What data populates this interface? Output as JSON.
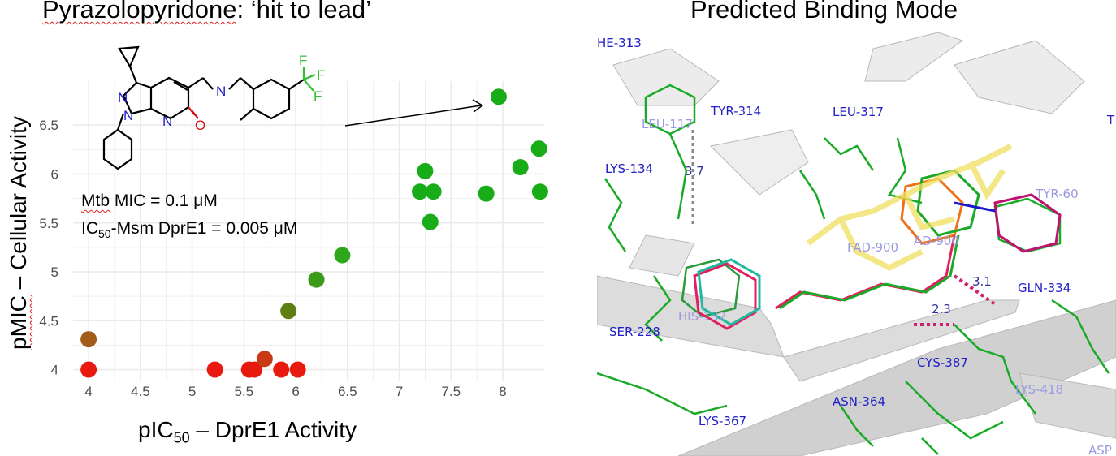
{
  "panels": {
    "left_title_part1": "Pyrazolopyridone",
    "left_title_part2": ": ‘hit to lead’",
    "right_title": "Predicted Binding Mode"
  },
  "notes": {
    "line1_a": "Mtb",
    "line1_b": " MIC = 0.1 μM",
    "line2_a": "IC",
    "line2_sub": "50",
    "line2_b": "-Msm DprE1 = 0.005 μM"
  },
  "axes": {
    "x_title_a": "pIC",
    "x_title_sub": "50",
    "x_title_b": " – DprE1 Activity",
    "y_title_a": "pMIC",
    "y_title_b": " – Cellular Activity"
  },
  "chart_data": {
    "type": "scatter",
    "title": "Pyrazolopyridone: ‘hit to lead’",
    "xlabel": "pIC50 – DprE1 Activity",
    "ylabel": "pMIC – Cellular Activity",
    "xlim": [
      3.85,
      8.4
    ],
    "ylim": [
      3.88,
      6.95
    ],
    "xticks": [
      "4",
      "4.5",
      "5",
      "5.5",
      "6",
      "6.5",
      "7",
      "7.5",
      "8"
    ],
    "xtick_values": [
      4,
      4.5,
      5,
      5.5,
      6,
      6.5,
      7,
      7.5,
      8
    ],
    "yticks": [
      "4",
      "4.5",
      "5",
      "5.5",
      "6",
      "6.5"
    ],
    "ytick_values": [
      4,
      4.5,
      5,
      5.5,
      6,
      6.5
    ],
    "grid": true,
    "points": [
      {
        "x": 4.0,
        "y": 4.0,
        "color": "#e8190f"
      },
      {
        "x": 4.0,
        "y": 4.31,
        "color": "#a35c1a"
      },
      {
        "x": 5.22,
        "y": 4.0,
        "color": "#e8190f"
      },
      {
        "x": 5.55,
        "y": 4.0,
        "color": "#e8190f"
      },
      {
        "x": 5.6,
        "y": 4.0,
        "color": "#e8190f"
      },
      {
        "x": 5.7,
        "y": 4.11,
        "color": "#c83a14"
      },
      {
        "x": 5.86,
        "y": 4.0,
        "color": "#e8190f"
      },
      {
        "x": 6.02,
        "y": 4.0,
        "color": "#e8190f"
      },
      {
        "x": 5.93,
        "y": 4.6,
        "color": "#5f7e14"
      },
      {
        "x": 6.2,
        "y": 4.92,
        "color": "#3b9a18"
      },
      {
        "x": 6.45,
        "y": 5.17,
        "color": "#2ea81a"
      },
      {
        "x": 7.2,
        "y": 5.82,
        "color": "#18ad18"
      },
      {
        "x": 7.25,
        "y": 6.03,
        "color": "#18ad18"
      },
      {
        "x": 7.33,
        "y": 5.82,
        "color": "#18ad18"
      },
      {
        "x": 7.3,
        "y": 5.51,
        "color": "#18ad18"
      },
      {
        "x": 7.84,
        "y": 5.8,
        "color": "#18ad18"
      },
      {
        "x": 7.96,
        "y": 6.79,
        "color": "#18ad18"
      },
      {
        "x": 8.17,
        "y": 6.07,
        "color": "#18ad18"
      },
      {
        "x": 8.35,
        "y": 6.26,
        "color": "#18ad18"
      },
      {
        "x": 8.36,
        "y": 5.82,
        "color": "#18ad18"
      }
    ],
    "annotations": [
      "Mtb MIC = 0.1 μM",
      "IC50-Msm DprE1 = 0.005 μM"
    ]
  },
  "molecule": {
    "atom_labels": [
      "N",
      "N",
      "N",
      "N",
      "O",
      "F",
      "F",
      "F"
    ]
  },
  "binding_mode": {
    "residue_labels": [
      "HE-313",
      "TYR-314",
      "LEU-317",
      "LEU-117",
      "LYS-134",
      "SER-228",
      "HIS-132",
      "CYS-387",
      "ASN-364",
      "LYS-367",
      "GLN-334",
      "LYS-418",
      "FAD-900",
      "AD-900",
      "TYR-60",
      "T",
      "ASP"
    ],
    "distances": [
      "3.7",
      "3.1",
      "2.3"
    ]
  }
}
